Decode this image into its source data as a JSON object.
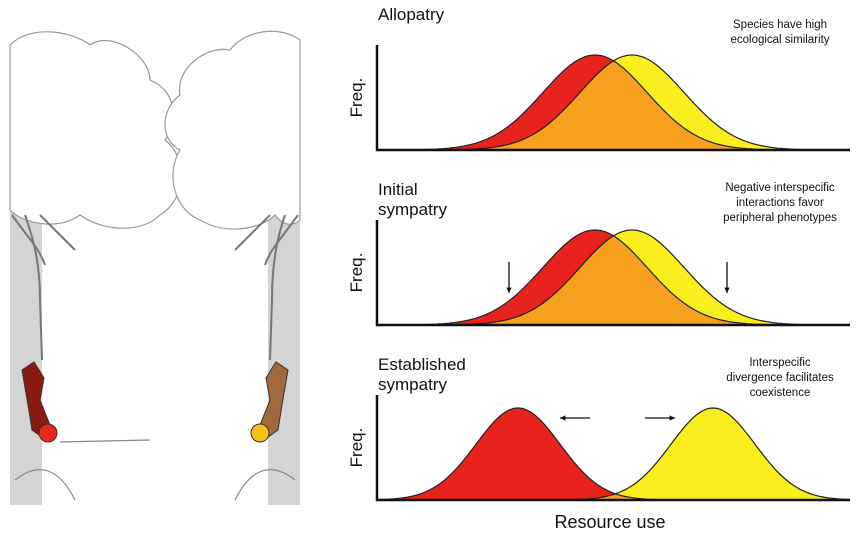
{
  "panels": [
    {
      "title": [
        "Allopatry"
      ],
      "y_label": "Freq.",
      "note": [
        "Species have high",
        "ecological similarity"
      ]
    },
    {
      "title": [
        "Initial",
        "sympatry"
      ],
      "y_label": "Freq.",
      "note": [
        "Negative interspecific",
        "interactions favor",
        "peripheral phenotypes"
      ]
    },
    {
      "title": [
        "Established",
        "sympatry"
      ],
      "y_label": "Freq.",
      "note": [
        "Interspecific",
        "divergence facilitates",
        "coexistence"
      ]
    }
  ],
  "x_label": "Resource use"
}
